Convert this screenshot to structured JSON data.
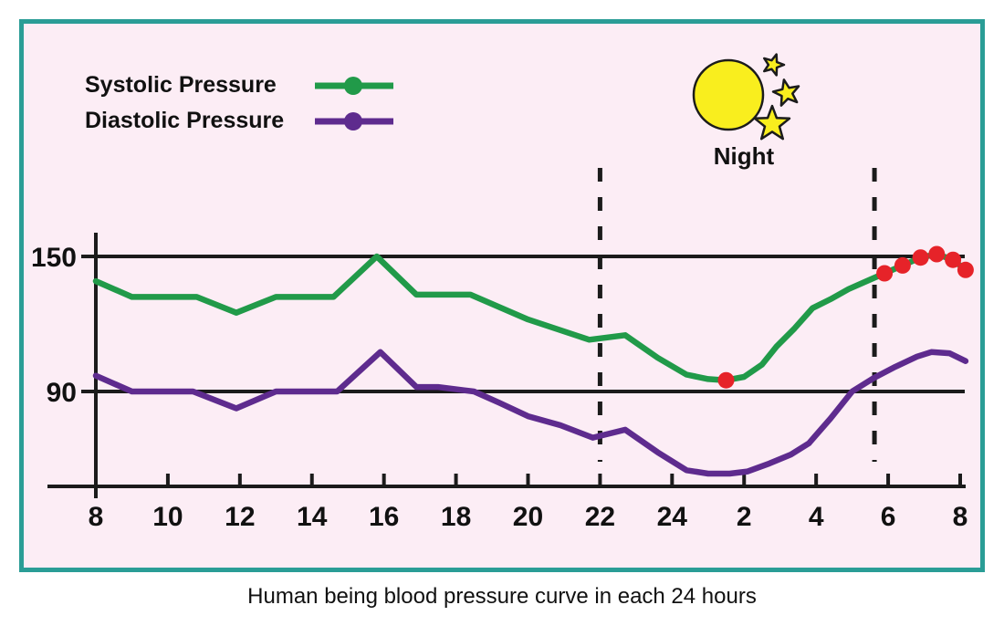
{
  "caption": "Human being blood pressure curve in each 24 hours",
  "frame": {
    "border_color": "#2a9d96",
    "background_color": "#fcedf5"
  },
  "legend": {
    "items": [
      {
        "label": "Systolic Pressure",
        "color": "#219a49"
      },
      {
        "label": "Diastolic Pressure",
        "color": "#5e2b8e"
      }
    ]
  },
  "night": {
    "label": "Night",
    "moon_color": "#f9ee1e",
    "star_color": "#f9ee1e"
  },
  "chart_data": {
    "type": "line",
    "title": "Human being blood pressure curve in each 24 hours",
    "xlabel": "",
    "ylabel": "",
    "axis_color": "#1b1b1b",
    "x_axis": {
      "tick_hours": [
        8,
        10,
        12,
        14,
        16,
        18,
        20,
        22,
        24,
        26,
        28,
        30,
        32
      ],
      "tick_labels": [
        "8",
        "10",
        "12",
        "14",
        "16",
        "18",
        "20",
        "22",
        "24",
        "2",
        "4",
        "6",
        "8"
      ],
      "range_hours": [
        8,
        32.2
      ]
    },
    "y_axis": {
      "tick_values": [
        150,
        90
      ],
      "tick_labels": [
        "150",
        "90"
      ],
      "range_shown": [
        48,
        160
      ]
    },
    "night_span_hours": [
      22,
      29.62
    ],
    "grid": "y-ticks-only",
    "legend_position": "top-left",
    "series": [
      {
        "name": "Systolic Pressure",
        "color": "#219a49",
        "points": [
          [
            8,
            139
          ],
          [
            9,
            132
          ],
          [
            10.8,
            132
          ],
          [
            11.9,
            125
          ],
          [
            13,
            132
          ],
          [
            14.6,
            132
          ],
          [
            15.8,
            150
          ],
          [
            16.9,
            133
          ],
          [
            18.4,
            133
          ],
          [
            20,
            122
          ],
          [
            21.7,
            113
          ],
          [
            22.7,
            115
          ],
          [
            23.6,
            105
          ],
          [
            24.4,
            97.5
          ],
          [
            25,
            95.5
          ],
          [
            25.5,
            95
          ],
          [
            26,
            96.5
          ],
          [
            26.5,
            102
          ],
          [
            26.9,
            110
          ],
          [
            27.4,
            118
          ],
          [
            27.9,
            127
          ],
          [
            28.4,
            131
          ],
          [
            28.9,
            135.5
          ],
          [
            29.4,
            139
          ],
          [
            29.9,
            142.5
          ],
          [
            30.4,
            146
          ],
          [
            30.9,
            149.5
          ],
          [
            31.35,
            151
          ],
          [
            31.8,
            148.5
          ],
          [
            32.15,
            144
          ]
        ]
      },
      {
        "name": "Diastolic Pressure",
        "color": "#5e2b8e",
        "points": [
          [
            8,
            97
          ],
          [
            9,
            90
          ],
          [
            10.7,
            90
          ],
          [
            11.9,
            82.5
          ],
          [
            13,
            90
          ],
          [
            14.7,
            90
          ],
          [
            15.9,
            107.5
          ],
          [
            16.9,
            92
          ],
          [
            17.5,
            92
          ],
          [
            18.5,
            90
          ],
          [
            19.2,
            85
          ],
          [
            20,
            79
          ],
          [
            20.9,
            75
          ],
          [
            21.8,
            69.5
          ],
          [
            22.7,
            73
          ],
          [
            23.6,
            63
          ],
          [
            24.4,
            55
          ],
          [
            25,
            53.5
          ],
          [
            25.6,
            53.5
          ],
          [
            26.1,
            54.5
          ],
          [
            26.7,
            58
          ],
          [
            27.3,
            62
          ],
          [
            27.8,
            67
          ],
          [
            28.4,
            78
          ],
          [
            29,
            90
          ],
          [
            29.6,
            96
          ],
          [
            30.2,
            101
          ],
          [
            30.8,
            105.5
          ],
          [
            31.2,
            107.5
          ],
          [
            31.7,
            107
          ],
          [
            32.15,
            103.5
          ]
        ]
      }
    ],
    "highlight_dots": {
      "color": "#e62329",
      "on_series": "Systolic Pressure",
      "points": [
        [
          25.5,
          95
        ],
        [
          29.9,
          142.5
        ],
        [
          30.4,
          146
        ],
        [
          30.9,
          149.5
        ],
        [
          31.35,
          151
        ],
        [
          31.8,
          148.5
        ],
        [
          32.15,
          144
        ]
      ]
    }
  }
}
